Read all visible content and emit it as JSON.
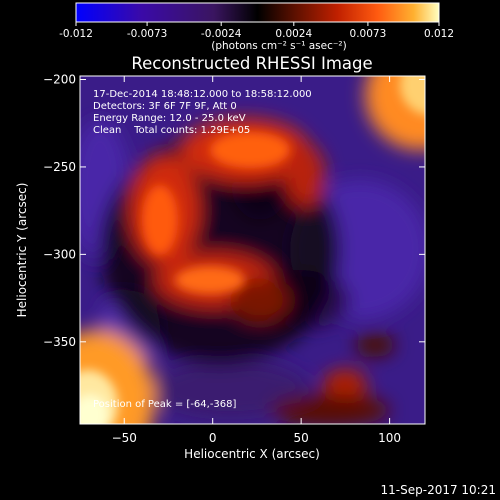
{
  "chart_data": {
    "type": "heatmap",
    "title": "Reconstructed RHESSI Image",
    "xlabel": "Heliocentric X (arcsec)",
    "ylabel": "Heliocentric Y (arcsec)",
    "xlim": [
      -75,
      120
    ],
    "ylim": [
      -397,
      -198
    ],
    "x_ticks": [
      -50,
      0,
      50,
      100
    ],
    "y_ticks": [
      -200,
      -250,
      -300,
      -350
    ],
    "colorbar": {
      "range": [
        -0.012,
        0.012
      ],
      "ticks": [
        "-0.012",
        "-0.0073",
        "-0.0024",
        "0.0024",
        "0.0073",
        "0.012"
      ],
      "unit_label": "(photons cm⁻² s⁻¹ asec⁻²)",
      "colors": [
        "#0000ff",
        "#3a0aa8",
        "#3a1560",
        "#000000",
        "#5a1000",
        "#c02000",
        "#ff5a10",
        "#ffb030",
        "#ffffc0"
      ]
    },
    "annotations": [
      "17-Dec-2014 18:48:12.000 to 18:58:12.000",
      "Detectors: 3F 6F 7F 9F, Att 0",
      "Energy Range: 12.0 - 25.0 keV",
      "Clean    Total counts: 1.29E+05"
    ],
    "peak_label": "Position of Peak = [-64,-368]",
    "peak": [
      -64,
      -368
    ]
  },
  "timestamp": "11-Sep-2017 10:21"
}
